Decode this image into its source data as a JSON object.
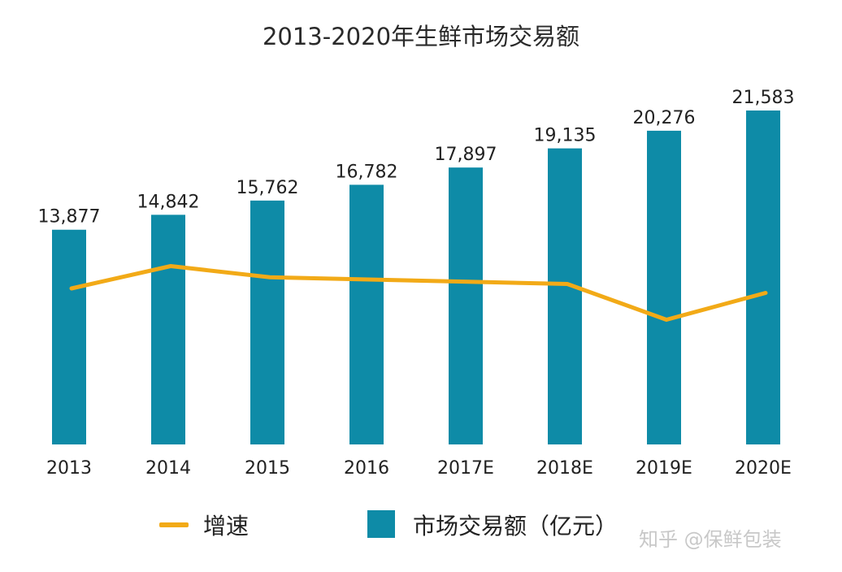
{
  "chart_data": {
    "type": "bar",
    "title": "2013-2020年生鲜市场交易额",
    "categories": [
      "2013",
      "2014",
      "2015",
      "2016",
      "2017E",
      "2018E",
      "2019E",
      "2020E"
    ],
    "series": [
      {
        "name": "市场交易额（亿元）",
        "type": "bar",
        "color": "#0E8BA7",
        "values": [
          13877,
          14842,
          15762,
          16782,
          17897,
          19135,
          20276,
          21583
        ],
        "data_labels": [
          "13,877",
          "14,842",
          "15,762",
          "16,782",
          "17,897",
          "19,135",
          "20,276",
          "21,583"
        ]
      },
      {
        "name": "增速",
        "type": "line",
        "color": "#F2AA17",
        "values": [
          6.5,
          7.0,
          6.75,
          6.7,
          6.65,
          6.6,
          5.8,
          6.4
        ]
      }
    ],
    "ylim": [
      0,
      24000
    ],
    "grid": false,
    "legend": "bottom"
  },
  "watermark": "知乎 @保鲜包装"
}
